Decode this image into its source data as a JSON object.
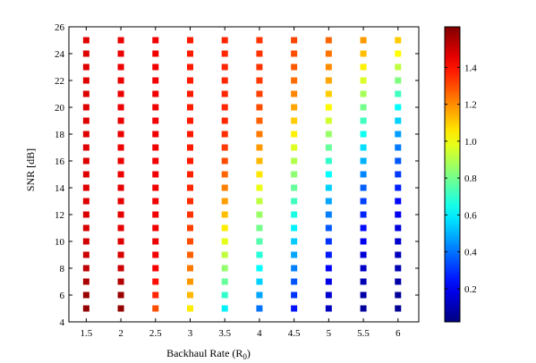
{
  "chart_data": {
    "type": "heatmap",
    "xlabel": "Backhaul Rate (R",
    "xlabel_subscript": "0",
    "xlabel_suffix": ")",
    "ylabel": "SNR [dB]",
    "x": [
      1.5,
      2,
      2.5,
      3,
      3.5,
      4,
      4.5,
      5,
      5.5,
      6
    ],
    "y": [
      5,
      6,
      7,
      8,
      9,
      10,
      11,
      12,
      13,
      14,
      15,
      16,
      17,
      18,
      19,
      20,
      21,
      22,
      23,
      24,
      25
    ],
    "xlim": [
      1.25,
      6.3
    ],
    "ylim": [
      4,
      26
    ],
    "x_ticks": [
      "1.5",
      "2",
      "2.5",
      "3",
      "3.5",
      "4",
      "4.5",
      "5",
      "5.5",
      "6"
    ],
    "y_ticks": [
      "4",
      "6",
      "8",
      "10",
      "12",
      "14",
      "16",
      "18",
      "20",
      "22",
      "24",
      "26"
    ],
    "colorbar": {
      "colormap": "jet",
      "min": 0.02,
      "max": 1.62,
      "ticks": [
        "0.2",
        "0.4",
        "0.6",
        "0.8",
        "1.0",
        "1.2",
        "1.4"
      ]
    },
    "grid": false,
    "values": [
      [
        1.59,
        1.59,
        1.3,
        1.05,
        0.6,
        0.4,
        0.25,
        0.12,
        0.07,
        0.05
      ],
      [
        1.58,
        1.58,
        1.36,
        1.13,
        0.7,
        0.48,
        0.3,
        0.15,
        0.08,
        0.06
      ],
      [
        1.55,
        1.54,
        1.4,
        1.18,
        0.78,
        0.55,
        0.35,
        0.18,
        0.1,
        0.08
      ],
      [
        1.52,
        1.5,
        1.43,
        1.23,
        0.85,
        0.62,
        0.42,
        0.22,
        0.13,
        0.1
      ],
      [
        1.5,
        1.48,
        1.44,
        1.27,
        0.92,
        0.68,
        0.48,
        0.26,
        0.16,
        0.12
      ],
      [
        1.49,
        1.47,
        1.45,
        1.3,
        0.98,
        0.75,
        0.54,
        0.3,
        0.2,
        0.14
      ],
      [
        1.48,
        1.46,
        1.44,
        1.32,
        1.05,
        0.8,
        0.6,
        0.36,
        0.24,
        0.17
      ],
      [
        1.48,
        1.46,
        1.44,
        1.34,
        1.12,
        0.86,
        0.66,
        0.42,
        0.28,
        0.2
      ],
      [
        1.47,
        1.46,
        1.44,
        1.35,
        1.17,
        0.92,
        0.72,
        0.48,
        0.32,
        0.23
      ],
      [
        1.47,
        1.46,
        1.44,
        1.36,
        1.22,
        0.99,
        0.78,
        0.55,
        0.37,
        0.27
      ],
      [
        1.47,
        1.45,
        1.44,
        1.37,
        1.26,
        1.06,
        0.84,
        0.62,
        0.43,
        0.31
      ],
      [
        1.47,
        1.45,
        1.44,
        1.38,
        1.3,
        1.13,
        0.9,
        0.7,
        0.5,
        0.36
      ],
      [
        1.47,
        1.45,
        1.44,
        1.38,
        1.33,
        1.18,
        0.97,
        0.78,
        0.57,
        0.41
      ],
      [
        1.47,
        1.45,
        1.44,
        1.38,
        1.35,
        1.23,
        1.04,
        0.86,
        0.64,
        0.47
      ],
      [
        1.47,
        1.45,
        1.44,
        1.38,
        1.36,
        1.27,
        1.1,
        0.95,
        0.72,
        0.55
      ],
      [
        1.47,
        1.45,
        1.44,
        1.38,
        1.36,
        1.3,
        1.16,
        1.03,
        0.8,
        0.62
      ],
      [
        1.47,
        1.45,
        1.44,
        1.38,
        1.36,
        1.32,
        1.21,
        1.1,
        0.88,
        0.72
      ],
      [
        1.47,
        1.45,
        1.44,
        1.38,
        1.36,
        1.33,
        1.25,
        1.16,
        0.96,
        0.82
      ],
      [
        1.47,
        1.45,
        1.44,
        1.38,
        1.36,
        1.34,
        1.28,
        1.2,
        1.04,
        0.92
      ],
      [
        1.47,
        1.45,
        1.44,
        1.38,
        1.36,
        1.34,
        1.3,
        1.24,
        1.12,
        1.02
      ],
      [
        1.47,
        1.45,
        1.44,
        1.38,
        1.36,
        1.34,
        1.31,
        1.26,
        1.18,
        1.1
      ]
    ]
  }
}
